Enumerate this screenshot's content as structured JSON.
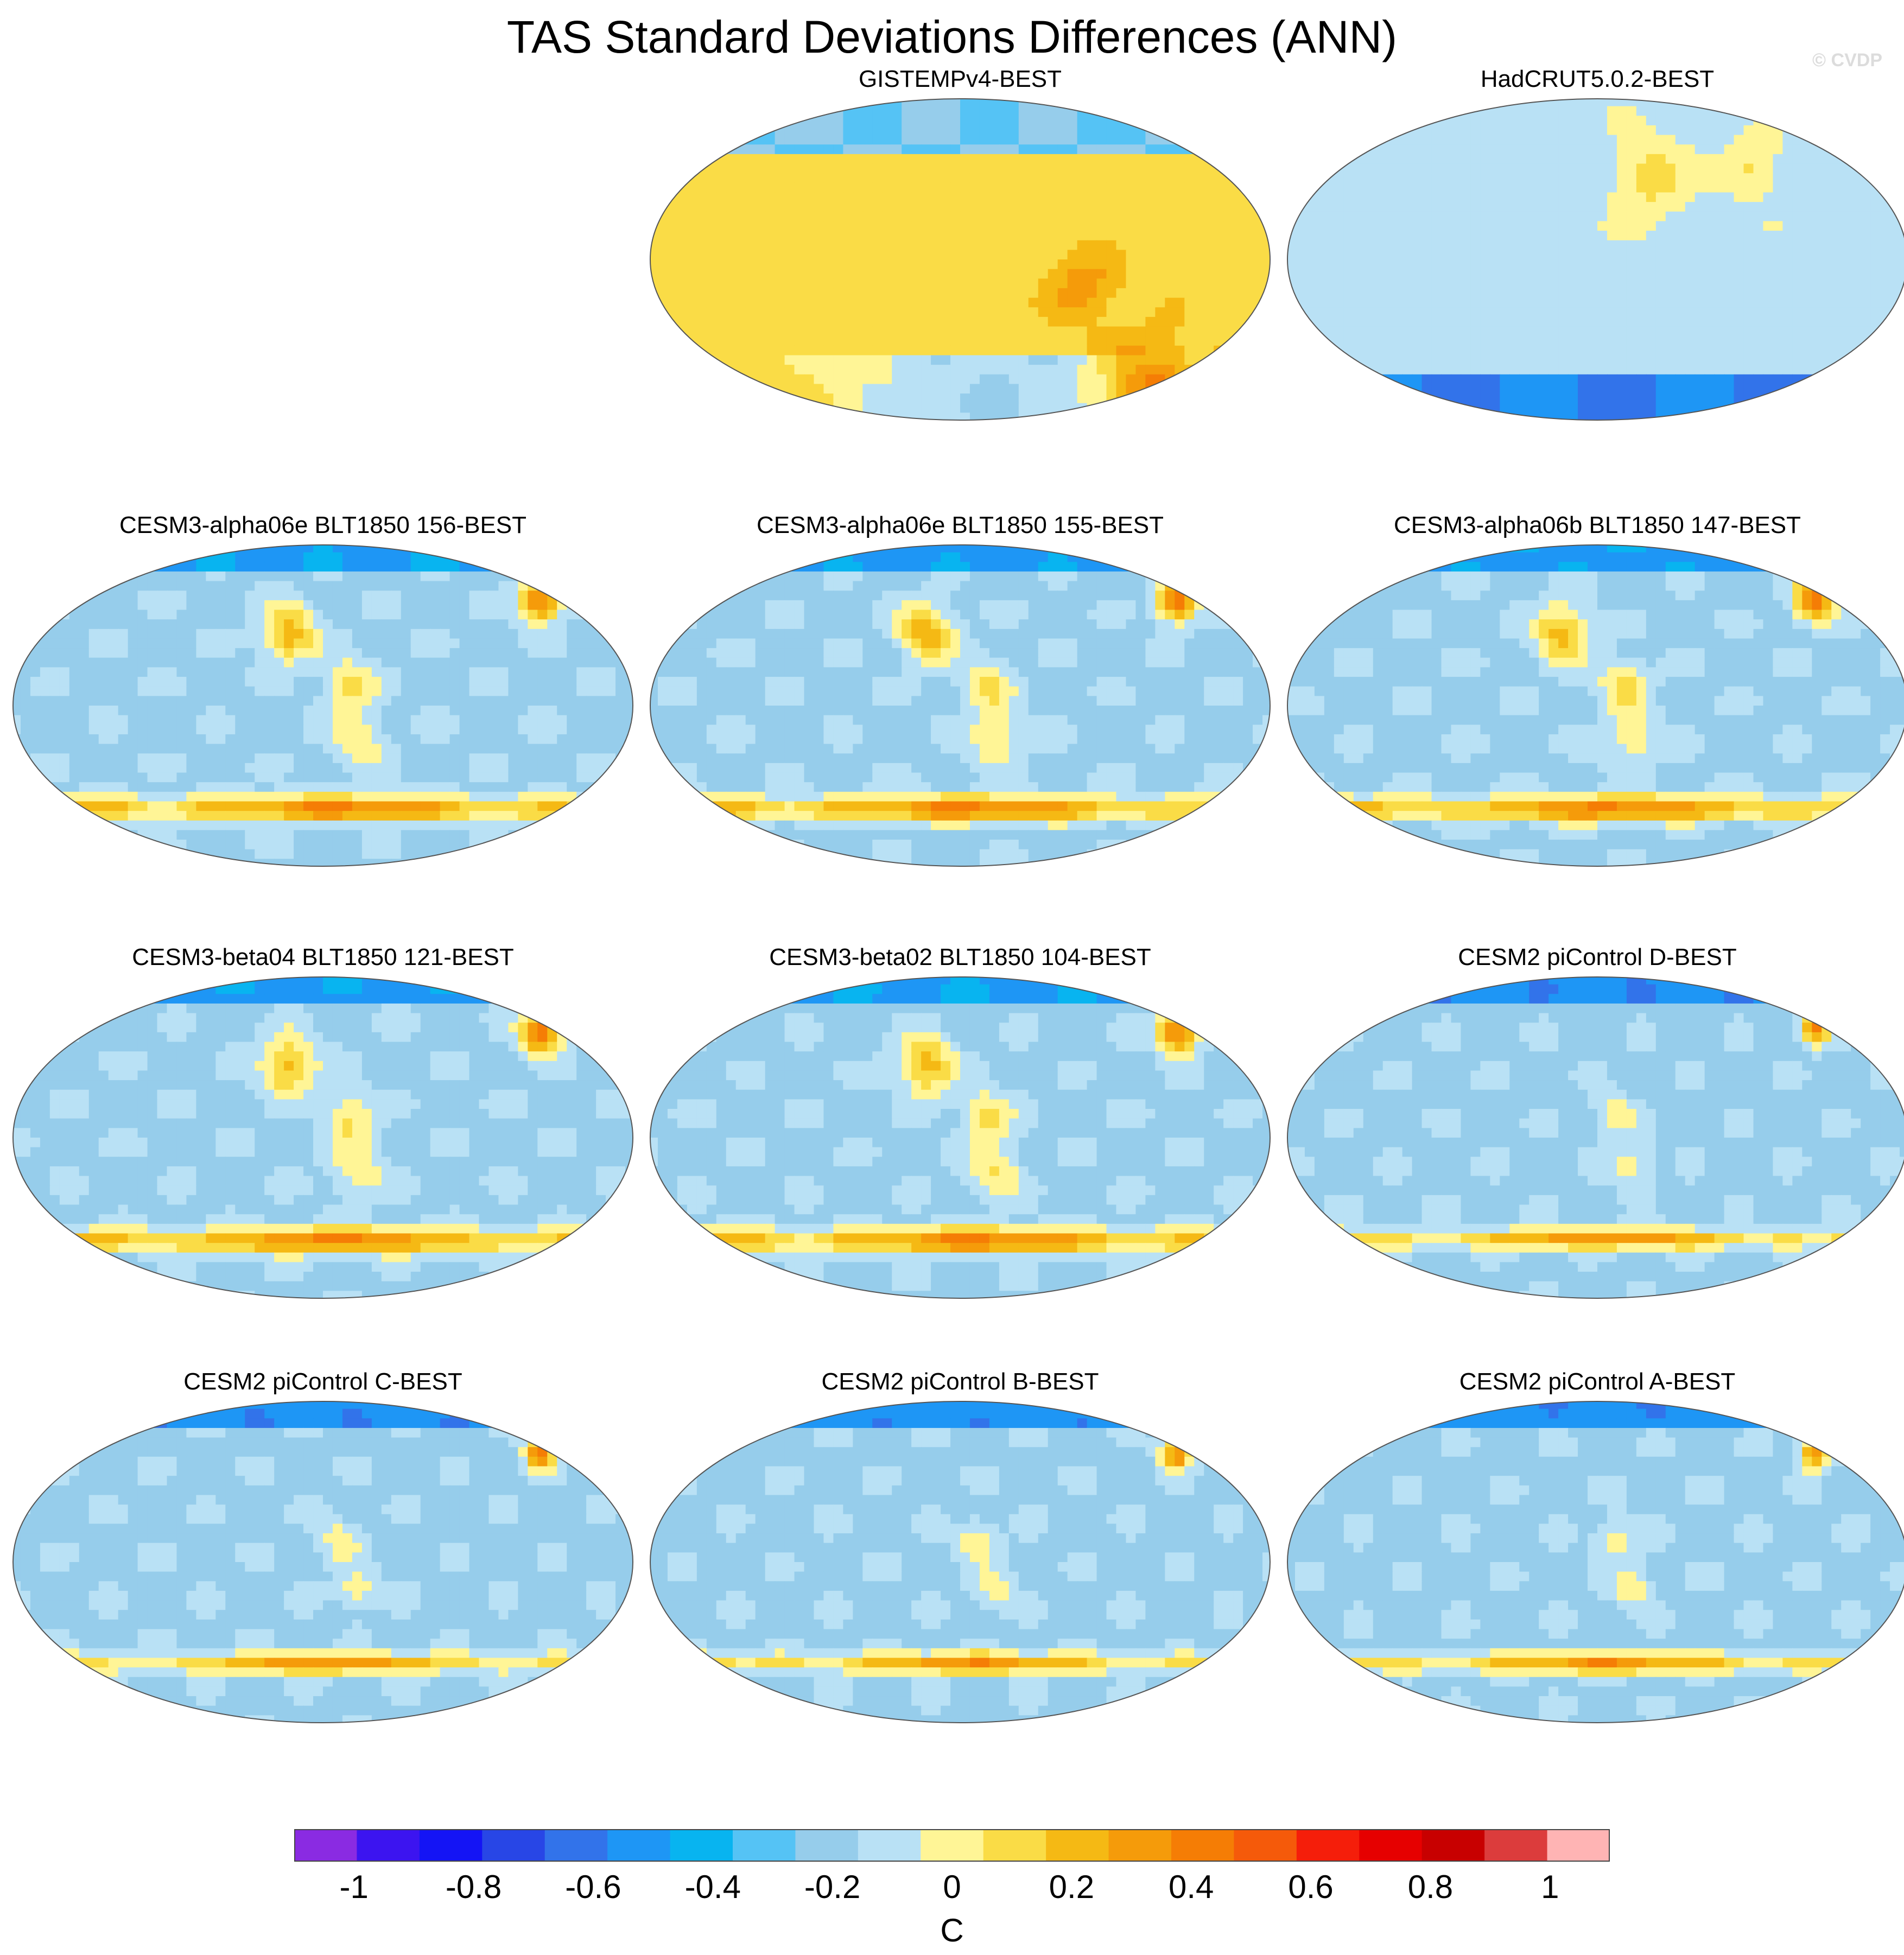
{
  "header": {
    "title": "TAS Standard Deviations Differences (ANN)",
    "watermark": "© CVDP"
  },
  "chart_data": {
    "type": "heatmap",
    "projection": "robinson",
    "panels": [
      {
        "id": "gistemp",
        "title": "GISTEMPv4-BEST",
        "pattern": "obs_warm"
      },
      {
        "id": "hadcrut",
        "title": "HadCRUT5.0.2-BEST",
        "pattern": "obs_cool"
      },
      {
        "id": "a06e156",
        "title": "CESM3-alpha06e BLT1850 156-BEST",
        "pattern": "model_strong"
      },
      {
        "id": "a06e155",
        "title": "CESM3-alpha06e BLT1850 155-BEST",
        "pattern": "model_strong"
      },
      {
        "id": "a06b147",
        "title": "CESM3-alpha06b BLT1850 147-BEST",
        "pattern": "model_strong"
      },
      {
        "id": "b04_121",
        "title": "CESM3-beta04 BLT1850 121-BEST",
        "pattern": "model_strong"
      },
      {
        "id": "b02_104",
        "title": "CESM3-beta02 BLT1850 104-BEST",
        "pattern": "model_strong"
      },
      {
        "id": "picD",
        "title": "CESM2 piControl D-BEST",
        "pattern": "model_moderate"
      },
      {
        "id": "picC",
        "title": "CESM2 piControl C-BEST",
        "pattern": "model_moderate"
      },
      {
        "id": "picB",
        "title": "CESM2 piControl B-BEST",
        "pattern": "model_moderate"
      },
      {
        "id": "picA",
        "title": "CESM2 piControl A-BEST",
        "pattern": "model_moderate"
      }
    ],
    "colorbar": {
      "range": [
        -1.1,
        1.1
      ],
      "tick_values": [
        -1,
        -0.8,
        -0.6,
        -0.4,
        -0.2,
        0,
        0.2,
        0.4,
        0.6,
        0.8,
        1
      ],
      "tick_labels": [
        "-1",
        "-0.8",
        "-0.6",
        "-0.4",
        "-0.2",
        "0",
        "0.2",
        "0.4",
        "0.6",
        "0.8",
        "1"
      ],
      "units": "C",
      "colors": [
        "#8a2be2",
        "#3c14f0",
        "#1414f5",
        "#2846e6",
        "#3273ea",
        "#1e96f5",
        "#08b4f0",
        "#55c3f5",
        "#96cdeb",
        "#b9e1f5",
        "#fff596",
        "#fadc46",
        "#f5b914",
        "#f59b0a",
        "#f57d05",
        "#f55a0a",
        "#f51e0a",
        "#e60000",
        "#c80000",
        "#dc3c3c",
        "#ffb4b4"
      ]
    }
  }
}
